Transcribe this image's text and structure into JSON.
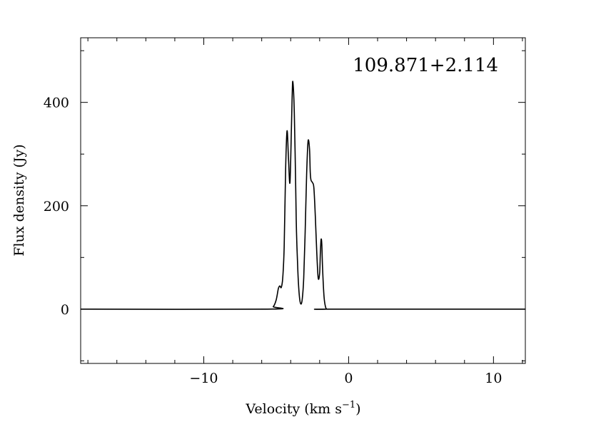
{
  "chart_data": {
    "type": "line",
    "title": "",
    "annotation": "109.871+2.114",
    "xlabel": "Velocity (km s",
    "xlabel_sup": "−1",
    "xlabel_close": ")",
    "ylabel": "Flux density (Jy)",
    "xlim": [
      -18.5,
      12.2
    ],
    "ylim": [
      -105,
      525
    ],
    "x_major_ticks": [
      -10,
      0,
      10
    ],
    "x_tick_labels": [
      "−10",
      "0",
      "10"
    ],
    "x_minor_step": 2,
    "y_major_ticks": [
      0,
      200,
      400
    ],
    "y_tick_labels": [
      "0",
      "200",
      "400"
    ],
    "y_minor_step": 100,
    "grid": false,
    "series": [
      {
        "x": [
          -18.5,
          -5.6,
          -5.2,
          -5.0,
          -4.85,
          -4.75,
          -4.65,
          -4.55,
          -4.45,
          -4.35,
          -4.25,
          -4.15,
          -4.05,
          -3.95,
          -3.9,
          -3.85,
          -3.75,
          -3.65,
          -3.6,
          -3.5,
          -3.4,
          -3.3,
          -3.2,
          -3.1,
          -3.0,
          -2.9,
          -2.8,
          -2.7,
          -2.65,
          -2.6,
          -2.5,
          -2.4,
          -2.3,
          -2.2,
          -2.1,
          -2.0,
          -1.95,
          -1.9,
          -1.85,
          -1.8,
          -1.7,
          -1.6,
          -1.5,
          -1.3,
          12.2
        ],
        "y": [
          0,
          0,
          5,
          18,
          40,
          45,
          42,
          60,
          120,
          270,
          345,
          290,
          245,
          350,
          410,
          440,
          380,
          230,
          150,
          70,
          25,
          10,
          20,
          60,
          150,
          260,
          325,
          310,
          265,
          250,
          245,
          235,
          180,
          110,
          60,
          70,
          110,
          135,
          125,
          80,
          25,
          5,
          0,
          0,
          0
        ]
      }
    ]
  }
}
